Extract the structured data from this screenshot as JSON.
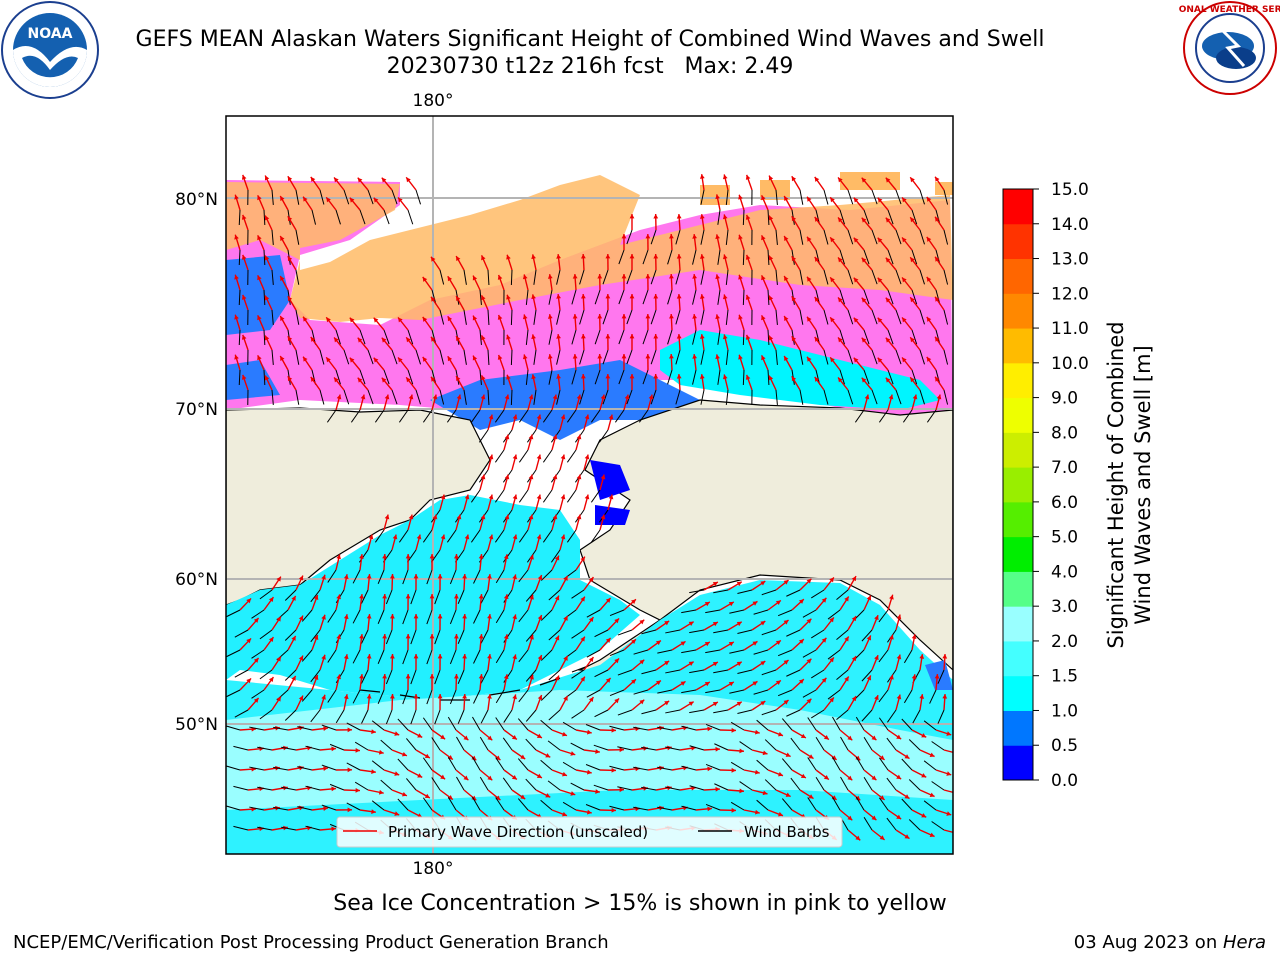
{
  "title": {
    "line1": "GEFS MEAN Alaskan Waters Significant Height of Combined Wind Waves and Swell",
    "line2": "20230730 t12z 216h fcst   Max: 2.49"
  },
  "logos": {
    "left": {
      "icon": "noaa-logo",
      "text": "NOAA"
    },
    "right": {
      "icon": "nws-logo",
      "text": "NATIONAL WEATHER SERVICE"
    }
  },
  "map": {
    "graticule": {
      "longitude_top": "180°",
      "longitude_bottom": "180°",
      "latitudes": [
        "80°N",
        "70°N",
        "60°N",
        "50°N"
      ]
    },
    "colors": {
      "land": "#efeddc",
      "sea_ice": "#ff66ff",
      "sea_ice_edge": "#ffbb55",
      "wave_low": "#00ffff",
      "wave_mid": "#66ffff",
      "wave_dark": "#0077ff",
      "wave_min": "#0000ff",
      "wave_arrow": "#ee0000",
      "wind_barb": "#000000"
    },
    "legend": [
      {
        "label": "Primary Wave Direction (unscaled)",
        "color": "#ee0000"
      },
      {
        "label": "Wind Barbs",
        "color": "#000000"
      }
    ]
  },
  "colorbar": {
    "title_line1": "Significant Height of Combined",
    "title_line2": "Wind Waves and Swell [m]",
    "ticks": [
      "0.0",
      "0.5",
      "1.0",
      "1.5",
      "2.0",
      "3.0",
      "4.0",
      "5.0",
      "6.0",
      "7.0",
      "8.0",
      "9.0",
      "10.0",
      "11.0",
      "12.0",
      "13.0",
      "14.0",
      "15.0"
    ],
    "colors": [
      "#0000ff",
      "#0077ff",
      "#00ffff",
      "#44ffff",
      "#99ffff",
      "#55ff88",
      "#00ee00",
      "#55ee00",
      "#99ee00",
      "#ccee00",
      "#eeff00",
      "#ffee00",
      "#ffbb00",
      "#ff8800",
      "#ff6600",
      "#ff3300",
      "#ff0000"
    ]
  },
  "footnote": "Sea Ice Concentration > 15% is shown in pink to yellow",
  "credit": {
    "left": "NCEP/EMC/Verification Post Processing Product Generation Branch",
    "right_date": "03 Aug 2023 on ",
    "right_host": "Hera"
  }
}
